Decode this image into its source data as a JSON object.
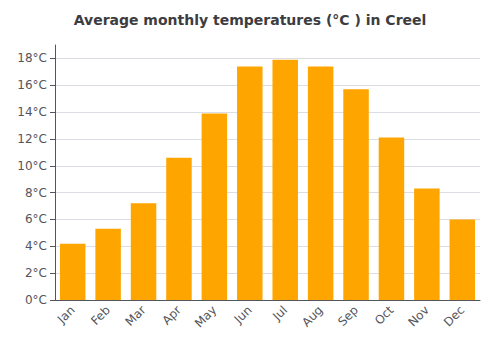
{
  "chart_data": {
    "type": "bar",
    "title": "Average monthly temperatures (°C ) in Creel",
    "categories": [
      "Jan",
      "Feb",
      "Mar",
      "Apr",
      "May",
      "Jun",
      "Jul",
      "Aug",
      "Sep",
      "Oct",
      "Nov",
      "Dec"
    ],
    "values": [
      4.2,
      5.3,
      7.2,
      10.6,
      13.9,
      17.4,
      17.9,
      17.4,
      15.7,
      12.1,
      8.3,
      6.0
    ],
    "color": "#FFA500",
    "ylim": [
      0,
      19
    ],
    "yticks": [
      {
        "value": 0,
        "label": "0°C"
      },
      {
        "value": 2,
        "label": "2°C"
      },
      {
        "value": 4,
        "label": "4°C"
      },
      {
        "value": 6,
        "label": "6°C"
      },
      {
        "value": 8,
        "label": "8°C"
      },
      {
        "value": 10,
        "label": "10°C"
      },
      {
        "value": 12,
        "label": "12°C"
      },
      {
        "value": 14,
        "label": "14°C"
      },
      {
        "value": 16,
        "label": "16°C"
      },
      {
        "value": 18,
        "label": "18°C"
      }
    ],
    "grid": true
  }
}
